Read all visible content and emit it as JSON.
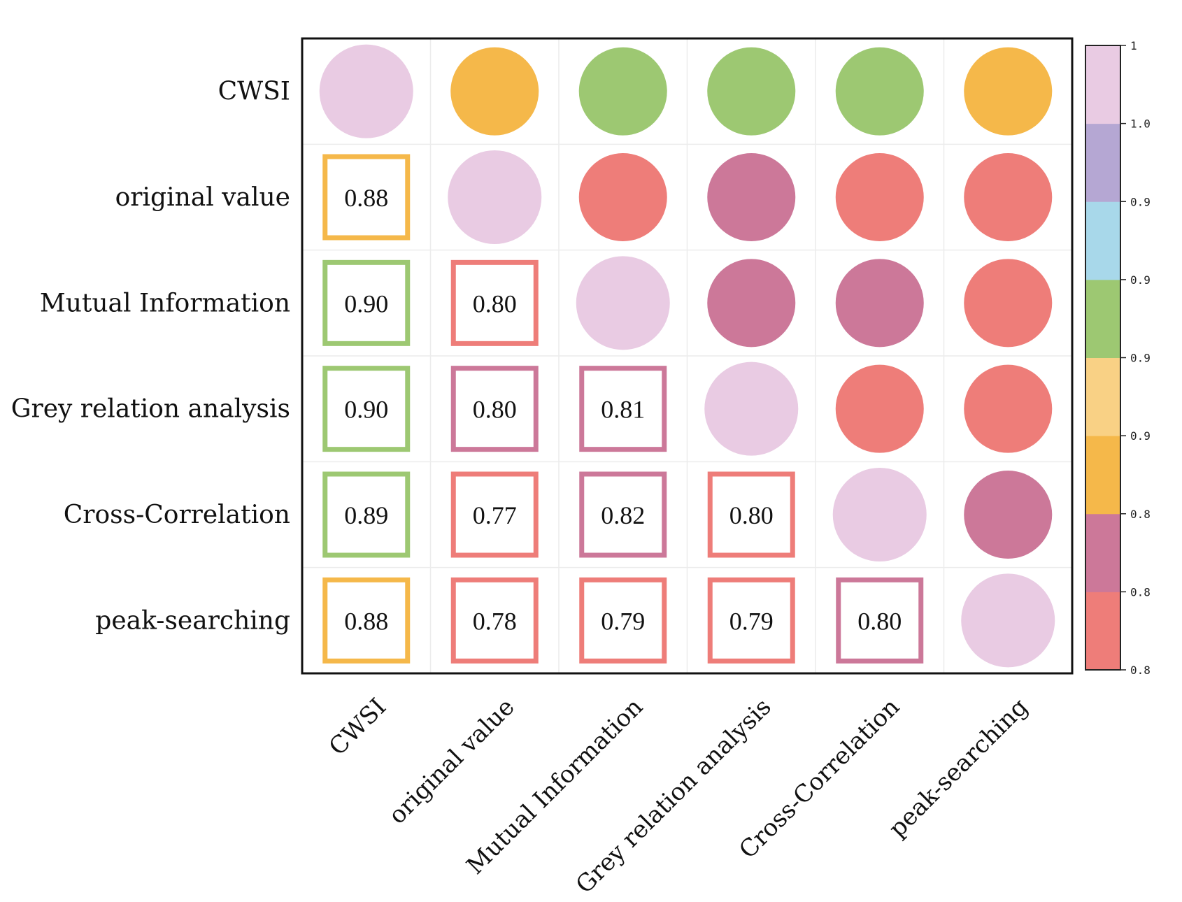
{
  "chart_data": {
    "type": "heatmap",
    "title": "",
    "labels": [
      "CWSI",
      "original value",
      "Mutual Information",
      "Grey relation analysis",
      "Cross-Correlation",
      "peak-searching"
    ],
    "matrix": [
      [
        1.0,
        0.88,
        0.9,
        0.9,
        0.89,
        0.88
      ],
      [
        0.88,
        1.0,
        0.8,
        0.8,
        0.77,
        0.78
      ],
      [
        0.9,
        0.8,
        1.0,
        0.81,
        0.82,
        0.79
      ],
      [
        0.9,
        0.8,
        0.81,
        1.0,
        0.8,
        0.79
      ],
      [
        0.89,
        0.77,
        0.82,
        0.8,
        1.0,
        0.8
      ],
      [
        0.88,
        0.78,
        0.79,
        0.79,
        0.8,
        1.0
      ]
    ],
    "cell_text": [
      [
        "",
        "",
        "",
        "",
        "",
        ""
      ],
      [
        "0.88",
        "",
        "",
        "",
        "",
        ""
      ],
      [
        "0.90",
        "0.80",
        "",
        "",
        "",
        ""
      ],
      [
        "0.90",
        "0.80",
        "0.81",
        "",
        "",
        ""
      ],
      [
        "0.89",
        "0.77",
        "0.82",
        "0.80",
        "",
        ""
      ],
      [
        "0.88",
        "0.78",
        "0.79",
        "0.79",
        "0.80",
        ""
      ]
    ],
    "color_class": [
      [
        7,
        2,
        4,
        4,
        4,
        2
      ],
      [
        2,
        7,
        0,
        1,
        0,
        0
      ],
      [
        4,
        0,
        7,
        1,
        1,
        0
      ],
      [
        4,
        1,
        1,
        7,
        0,
        0
      ],
      [
        4,
        0,
        1,
        0,
        7,
        1
      ],
      [
        2,
        0,
        0,
        0,
        1,
        7
      ]
    ],
    "lower_triangle": "boxed values",
    "upper_triangle": "colored circles",
    "colorbar": {
      "colors_bottom_to_top": [
        "#ee7d79",
        "#cc7899",
        "#f5b84a",
        "#f9d185",
        "#9dc872",
        "#a8d8ea",
        "#b5a7d3",
        "#e9cbe3"
      ],
      "tick_labels_bottom_to_top": [
        "0.8",
        "0.8",
        "0.8",
        "0.9",
        "0.9",
        "0.9",
        "0.9",
        "1.0",
        "1"
      ]
    }
  }
}
